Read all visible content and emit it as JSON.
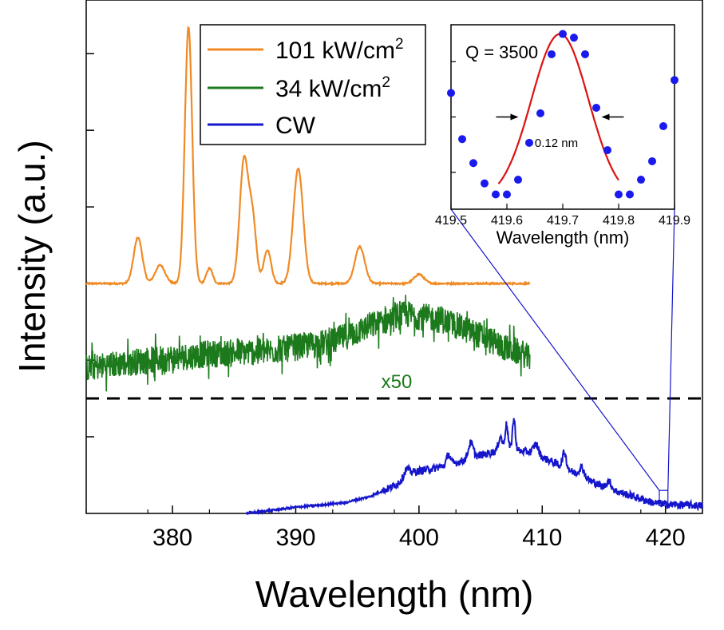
{
  "chart_data": [
    {
      "type": "line",
      "xlabel": "Wavelength (nm)",
      "ylabel": "Intensity (a.u.)",
      "xlim": [
        373,
        423
      ],
      "ylim": [
        0,
        3.35
      ],
      "x_ticks": [
        "380",
        "390",
        "400",
        "410",
        "420"
      ],
      "x_tick_values": [
        380,
        390,
        400,
        410,
        420
      ],
      "y_tick_values": [
        0.5,
        1.0,
        1.5,
        2.0,
        2.5,
        3.0
      ],
      "legend": {
        "position": "top-center",
        "entries": [
          {
            "base": "101 kW/cm",
            "sup": "2",
            "color": "#f08a24"
          },
          {
            "base": "34 kW/cm",
            "sup": "2",
            "color": "#1c7a1c"
          },
          {
            "base": "CW",
            "sup": "",
            "color": "#1515cc"
          }
        ]
      },
      "annotation": "x50",
      "separator_y": 0.75,
      "zoom_box": {
        "x": [
          419.5,
          420.2
        ],
        "y": [
          0.05,
          0.15
        ]
      },
      "series": [
        {
          "name": "101 kW/cm2",
          "color": "#f08a24",
          "baseline": 1.5,
          "x_range": [
            373,
            409
          ],
          "peaks": [
            {
              "center": 377.2,
              "height": 0.3,
              "width": 0.35
            },
            {
              "center": 379.0,
              "height": 0.12,
              "width": 0.4
            },
            {
              "center": 381.3,
              "height": 1.67,
              "width": 0.3
            },
            {
              "center": 383.0,
              "height": 0.1,
              "width": 0.25
            },
            {
              "center": 385.8,
              "height": 0.8,
              "width": 0.35
            },
            {
              "center": 386.5,
              "height": 0.4,
              "width": 0.3
            },
            {
              "center": 387.7,
              "height": 0.22,
              "width": 0.3
            },
            {
              "center": 390.2,
              "height": 0.75,
              "width": 0.4
            },
            {
              "center": 395.2,
              "height": 0.24,
              "width": 0.4
            },
            {
              "center": 400.0,
              "height": 0.06,
              "width": 0.4
            }
          ]
        },
        {
          "name": "34 kW/cm2",
          "color": "#1c7a1c",
          "x_range": [
            373,
            409
          ],
          "envelope_x": [
            373,
            378,
            383,
            388,
            393,
            396,
            399,
            402,
            405,
            407,
            408.5,
            409
          ],
          "envelope_y": [
            0.95,
            1.0,
            1.04,
            1.06,
            1.12,
            1.22,
            1.3,
            1.26,
            1.16,
            1.08,
            1.04,
            1.0
          ],
          "noise_amplitude": 0.09
        },
        {
          "name": "CW",
          "color": "#1515cc",
          "x_range": [
            386,
            423
          ],
          "envelope_x": [
            386,
            390,
            394,
            396,
            398,
            399.5,
            401,
            403,
            405,
            407,
            409,
            411,
            413,
            415,
            417,
            419,
            420,
            423
          ],
          "envelope_y": [
            0.0,
            0.04,
            0.07,
            0.11,
            0.18,
            0.27,
            0.29,
            0.33,
            0.38,
            0.42,
            0.4,
            0.33,
            0.25,
            0.17,
            0.12,
            0.07,
            0.06,
            0.05
          ],
          "peaks": [
            {
              "center": 399.0,
              "height": 0.05,
              "width": 0.2
            },
            {
              "center": 402.4,
              "height": 0.07,
              "width": 0.15
            },
            {
              "center": 404.2,
              "height": 0.1,
              "width": 0.2
            },
            {
              "center": 406.6,
              "height": 0.09,
              "width": 0.15
            },
            {
              "center": 407.1,
              "height": 0.16,
              "width": 0.12
            },
            {
              "center": 407.7,
              "height": 0.2,
              "width": 0.12
            },
            {
              "center": 409.5,
              "height": 0.07,
              "width": 0.2
            },
            {
              "center": 411.8,
              "height": 0.1,
              "width": 0.15
            },
            {
              "center": 413.2,
              "height": 0.06,
              "width": 0.2
            },
            {
              "center": 415.4,
              "height": 0.05,
              "width": 0.2
            }
          ],
          "noise_amplitude": 0.025
        }
      ]
    },
    {
      "type": "scatter",
      "title": "Q = 3500",
      "xlabel": "Wavelength (nm)",
      "xlim": [
        419.5,
        419.9
      ],
      "x_ticks": [
        "419.5",
        "419.6",
        "419.7",
        "419.8",
        "419.9"
      ],
      "x_tick_values": [
        419.5,
        419.6,
        419.7,
        419.8,
        419.9
      ],
      "ylim": [
        0,
        1
      ],
      "y_tick_values": [
        0.2,
        0.5,
        0.8
      ],
      "fwhm_label": "0.12 nm",
      "points_color": "#1a1aee",
      "fit_color": "#dd1111",
      "points": {
        "x": [
          419.5,
          419.52,
          419.54,
          419.56,
          419.58,
          419.6,
          419.62,
          419.64,
          419.66,
          419.68,
          419.7,
          419.72,
          419.74,
          419.76,
          419.78,
          419.8,
          419.82,
          419.84,
          419.86,
          419.88,
          419.9
        ],
        "y": [
          0.63,
          0.38,
          0.25,
          0.14,
          0.08,
          0.08,
          0.16,
          0.36,
          0.52,
          0.84,
          0.95,
          0.93,
          0.84,
          0.55,
          0.32,
          0.08,
          0.08,
          0.16,
          0.26,
          0.45,
          0.7
        ]
      },
      "fit": {
        "center": 419.695,
        "fwhm": 0.12,
        "amplitude": 0.9,
        "offset": 0.05,
        "x_range": [
          419.585,
          419.8
        ]
      }
    }
  ]
}
